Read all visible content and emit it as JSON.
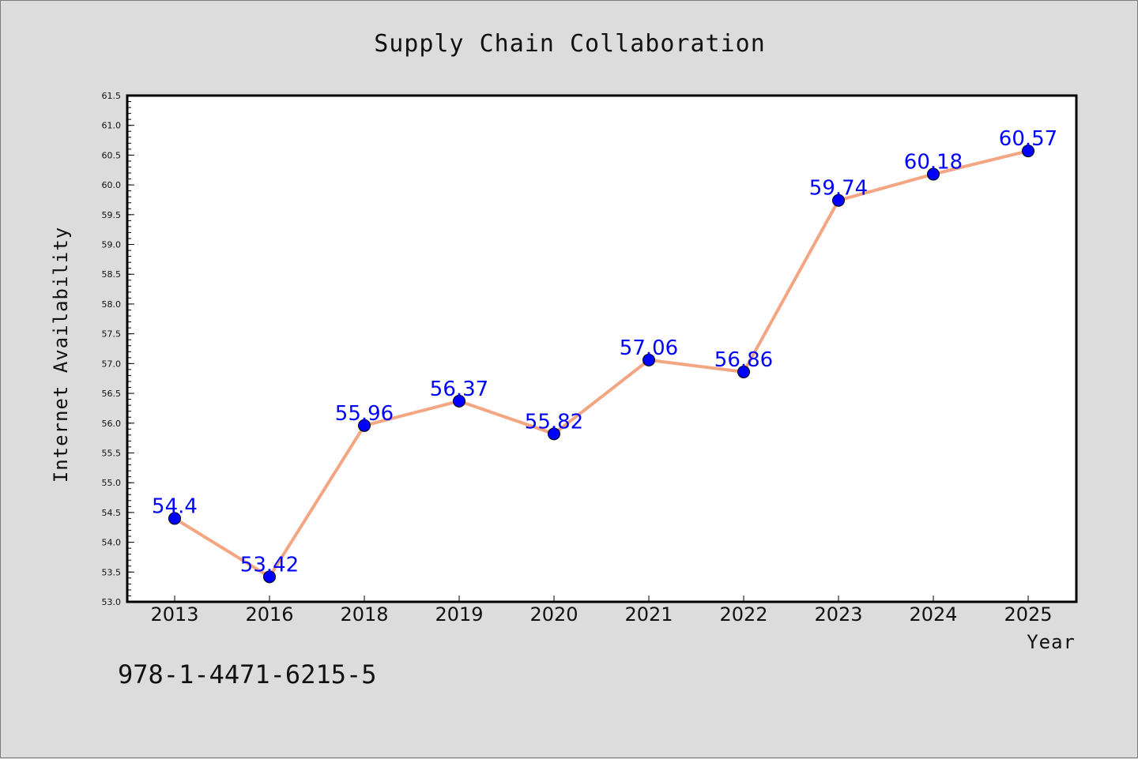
{
  "chart_data": {
    "type": "line",
    "title": "Supply Chain Collaboration",
    "xlabel": "Year",
    "ylabel": "Internet Availability",
    "categories": [
      "2013",
      "2016",
      "2018",
      "2019",
      "2020",
      "2021",
      "2022",
      "2023",
      "2024",
      "2025"
    ],
    "series": [
      {
        "values": [
          54.4,
          53.42,
          55.96,
          56.37,
          55.82,
          57.06,
          56.86,
          59.74,
          60.18,
          60.57
        ],
        "labels": [
          "54.4",
          "53.42",
          "55.96",
          "56.37",
          "55.82",
          "57.06",
          "56.86",
          "59.74",
          "60.18",
          "60.57"
        ],
        "line_color": "#f4a582",
        "marker_color": "#0000ff"
      }
    ],
    "ylim": [
      53.0,
      61.5
    ],
    "yticks": [
      "53.0",
      "53.5",
      "54.0",
      "54.5",
      "55.0",
      "55.5",
      "56.0",
      "56.5",
      "57.0",
      "57.5",
      "58.0",
      "58.5",
      "59.0",
      "59.5",
      "60.0",
      "60.5",
      "61.0",
      "61.5"
    ],
    "grid": false,
    "legend": "none",
    "label_color": "#0000ff",
    "background": "#dcdcdc",
    "plot_background": "#ffffff"
  },
  "annotation": "978-1-4471-6215-5"
}
